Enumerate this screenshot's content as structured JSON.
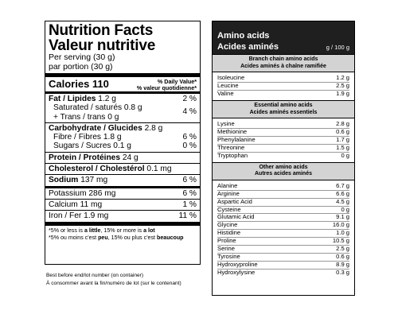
{
  "nutrition": {
    "title_en": "Nutrition Facts",
    "title_fr": "Valeur nutritive",
    "serving_en": "Per serving (30 g)",
    "serving_fr": "par portion (30 g)",
    "calories_label": "Calories 110",
    "dv_en": "% Daily Value*",
    "dv_fr": "% valeur quotidienne*",
    "fat_label": "Fat / Lipides",
    "fat_value": "1.2 g",
    "fat_pct": "2 %",
    "sat_line": "Saturated / saturés 0.8 g",
    "trans_line": "+ Trans / trans 0 g",
    "sat_pct": "4 %",
    "carb_label": "Carbohydrate / Glucides",
    "carb_value": "2.8 g",
    "fibre_line": "Fibre / Fibres 1.8 g",
    "fibre_pct": "6 %",
    "sugars_line": "Sugars / Sucres 0.1 g",
    "sugars_pct": "0 %",
    "protein_label": "Protein / Protéines",
    "protein_value": "24 g",
    "chol_label": "Cholesterol / Cholestérol",
    "chol_value": "0.1 mg",
    "sodium_label": "Sodium",
    "sodium_value": "137 mg",
    "sodium_pct": "6 %",
    "potassium_line": "Potassium 286 mg",
    "potassium_pct": "6 %",
    "calcium_line": "Calcium 11 mg",
    "calcium_pct": "1 %",
    "iron_line": "Iron / Fer 1.9 mg",
    "iron_pct": "11 %",
    "foot_en_a": "*5% or less is ",
    "foot_en_b": "a little",
    "foot_en_c": ", 15% or more is ",
    "foot_en_d": "a lot",
    "foot_fr_a": "*5% ou moins c'est ",
    "foot_fr_b": "peu",
    "foot_fr_c": ", 15% ou plus c'est ",
    "foot_fr_d": "beaucoup"
  },
  "note": {
    "en": "Best before end/lot number (on container)",
    "fr": "À consommer avant la fin/numéro de lot (sur le contenant)"
  },
  "amino": {
    "title_en": "Amino acids",
    "title_fr": "Acides aminés",
    "unit": "g / 100 g",
    "sections": [
      {
        "title_en": "Branch chain amino acids",
        "title_fr": "Acides aminés à chaîne ramifiée",
        "items": [
          {
            "name": "Isoleucine",
            "value": "1.2 g"
          },
          {
            "name": "Leucine",
            "value": "2.5 g"
          },
          {
            "name": "Valine",
            "value": "1.9 g"
          }
        ]
      },
      {
        "title_en": "Essential amino acids",
        "title_fr": "Acides aminés essentiels",
        "items": [
          {
            "name": "Lysine",
            "value": "2.8 g"
          },
          {
            "name": "Methionine",
            "value": "0.6 g"
          },
          {
            "name": "Phenylalanine",
            "value": "1.7 g"
          },
          {
            "name": "Threonine",
            "value": "1.5 g"
          },
          {
            "name": "Tryptophan",
            "value": "0 g"
          }
        ]
      },
      {
        "title_en": "Other amino acids",
        "title_fr": "Autres acides aminés",
        "items": [
          {
            "name": "Alanine",
            "value": "6.7 g"
          },
          {
            "name": "Arginine",
            "value": "6.6 g"
          },
          {
            "name": "Aspartic Acid",
            "value": "4.5 g"
          },
          {
            "name": "Cysteine",
            "value": "0 g"
          },
          {
            "name": "Glutamic Acid",
            "value": "9.1 g"
          },
          {
            "name": "Glycine",
            "value": "16.0 g"
          },
          {
            "name": "Histidine",
            "value": "1.0 g"
          },
          {
            "name": "Proline",
            "value": "10.5 g"
          },
          {
            "name": "Serine",
            "value": "2.5 g"
          },
          {
            "name": "Tyrosine",
            "value": "0.6 g"
          },
          {
            "name": "Hydroxyproline",
            "value": "8.9 g"
          },
          {
            "name": "Hydroxylysine",
            "value": "0.3 g"
          }
        ]
      }
    ]
  }
}
